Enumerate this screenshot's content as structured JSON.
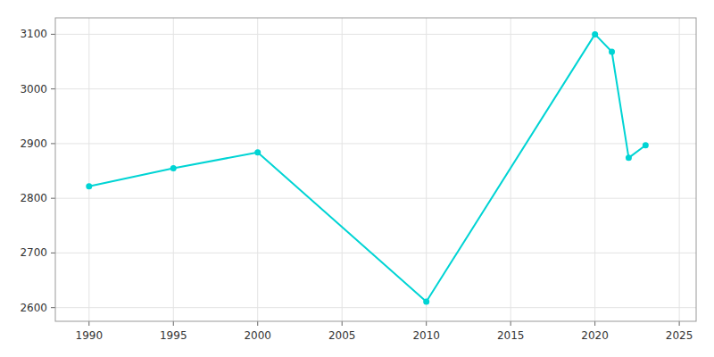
{
  "chart_data": {
    "type": "line",
    "x": [
      1990,
      1995,
      2000,
      2010,
      2020,
      2021,
      2022,
      2023
    ],
    "values": [
      2822,
      2855,
      2884,
      2611,
      3100,
      3068,
      2874,
      2897
    ],
    "color": "#00d4d4",
    "marker": "circle",
    "xlim": [
      1988,
      2026
    ],
    "ylim": [
      2575,
      3130
    ],
    "xticks": [
      1990,
      1995,
      2000,
      2005,
      2010,
      2015,
      2020,
      2025
    ],
    "yticks": [
      2600,
      2700,
      2800,
      2900,
      3000,
      3100
    ],
    "grid": true
  }
}
